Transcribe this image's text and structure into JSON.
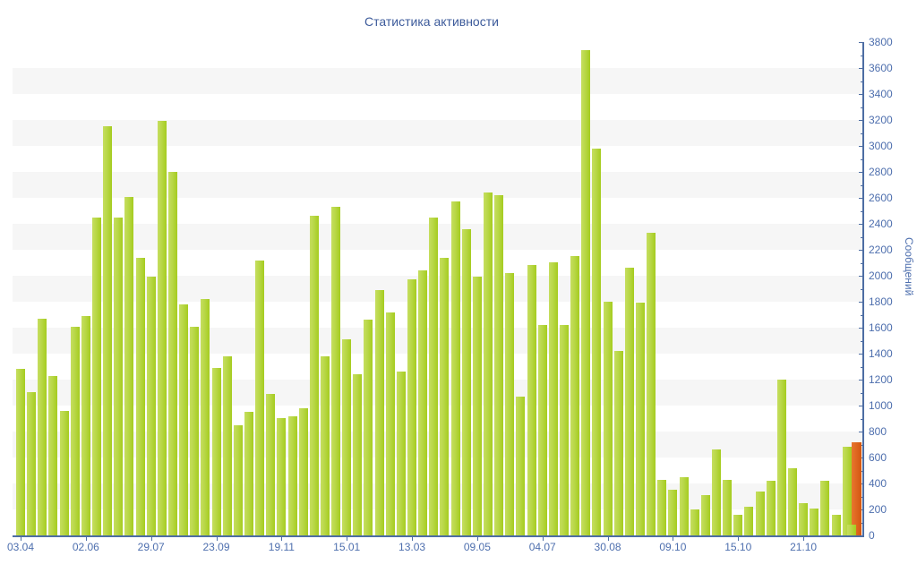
{
  "title": "Статистика активности",
  "y_axis": {
    "label": "Сообщений",
    "ticks": [
      "0",
      "200",
      "400",
      "600",
      "800",
      "1000",
      "1200",
      "1400",
      "1600",
      "1800",
      "2000",
      "2200",
      "2400",
      "2600",
      "2800",
      "3000",
      "3200",
      "3400",
      "3600",
      "3800"
    ],
    "minor_step": 100
  },
  "x_axis": {
    "labels": [
      "03.04",
      "02.06",
      "29.07",
      "23.09",
      "19.11",
      "15.01",
      "13.03",
      "09.05",
      "04.07",
      "30.08",
      "09.10",
      "15.10",
      "21.10"
    ],
    "label_every_n_bars": 6
  },
  "colors": {
    "background": "#ffffff",
    "stripe": "#f6f6f6",
    "axis": "#4d6da3",
    "tick_text": "#4e6fae",
    "title_text": "#3d5b9b",
    "bar_green": "#afd02f",
    "bar_orange": "#d35710"
  },
  "chart_data": {
    "type": "bar",
    "title": "Статистика активности",
    "xlabel": "",
    "ylabel": "Сообщений",
    "ylim": [
      0,
      3800
    ],
    "y_tick_step": 200,
    "grid": "alternating horizontal stripes, 200 units per stripe",
    "legend": "none",
    "x_tick_labels": [
      "03.04",
      "02.06",
      "29.07",
      "23.09",
      "19.11",
      "15.01",
      "13.03",
      "09.05",
      "04.07",
      "30.08",
      "09.10",
      "15.10",
      "21.10"
    ],
    "x_tick_every_n_bars": 6,
    "values": [
      1280,
      1100,
      1670,
      1230,
      960,
      1610,
      1690,
      2450,
      3150,
      2450,
      2610,
      2140,
      1990,
      3190,
      2800,
      1780,
      1610,
      1820,
      1290,
      1380,
      850,
      950,
      2120,
      1090,
      900,
      920,
      980,
      2460,
      1380,
      2530,
      1510,
      1240,
      1660,
      1890,
      1720,
      1260,
      1970,
      2040,
      2450,
      2140,
      2570,
      2360,
      1990,
      2640,
      2620,
      2020,
      1070,
      2080,
      1620,
      2100,
      1620,
      2150,
      3740,
      2980,
      1800,
      1420,
      2060,
      1790,
      2330,
      430,
      350,
      450,
      200,
      310,
      660,
      430,
      160,
      220,
      340,
      420,
      1200,
      520,
      250,
      210,
      420,
      160,
      680,
      80
    ],
    "current_period_bar": {
      "value": 720,
      "overlaps_last_green_bar": true
    }
  }
}
